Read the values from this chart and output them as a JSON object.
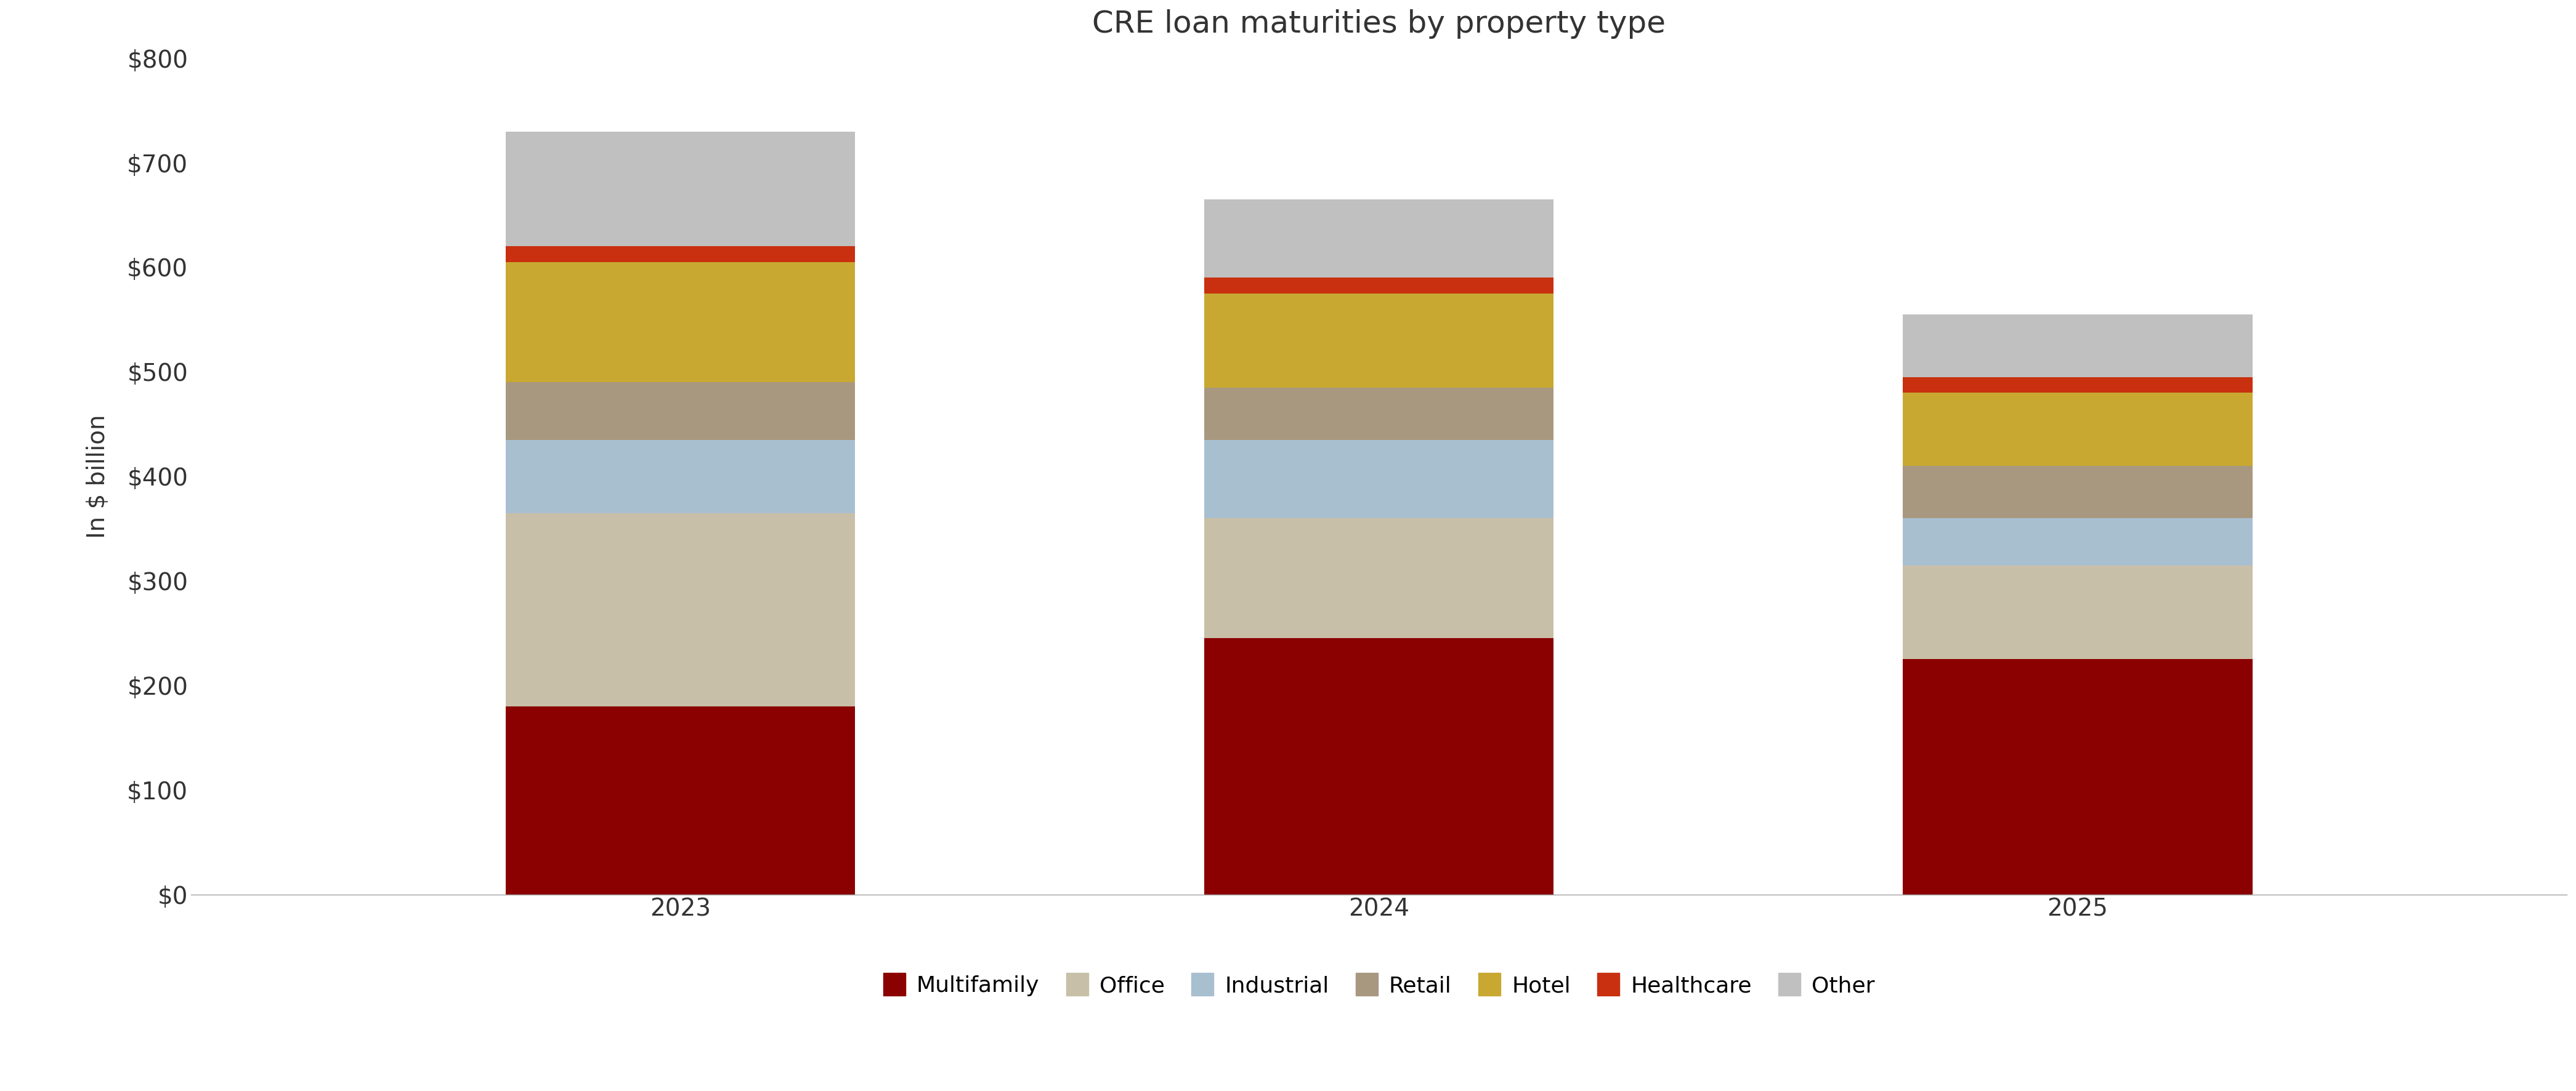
{
  "title": "CRE loan maturities by property type",
  "ylabel": "In $ billion",
  "categories": [
    "2023",
    "2024",
    "2025"
  ],
  "series": {
    "Multifamily": [
      180,
      245,
      225
    ],
    "Office": [
      185,
      115,
      90
    ],
    "Industrial": [
      70,
      75,
      45
    ],
    "Retail": [
      55,
      50,
      50
    ],
    "Hotel": [
      115,
      90,
      70
    ],
    "Healthcare": [
      15,
      15,
      15
    ],
    "Other": [
      110,
      75,
      60
    ]
  },
  "colors": {
    "Multifamily": "#8B0000",
    "Office": "#C8BFA8",
    "Industrial": "#A8BFD0",
    "Retail": "#A89880",
    "Hotel": "#C8A830",
    "Healthcare": "#C83010",
    "Other": "#C0C0C0"
  },
  "ytick_labels": [
    "$0",
    "$100",
    "$200",
    "$300",
    "$400",
    "$500",
    "$600",
    "$700",
    "$800"
  ],
  "ytick_values": [
    0,
    100,
    200,
    300,
    400,
    500,
    600,
    700,
    800
  ],
  "ylim": [
    0,
    800
  ],
  "bar_width": 0.5,
  "background_color": "#FFFFFF",
  "title_fontsize": 36,
  "axis_fontsize": 28,
  "tick_fontsize": 28,
  "legend_fontsize": 26
}
